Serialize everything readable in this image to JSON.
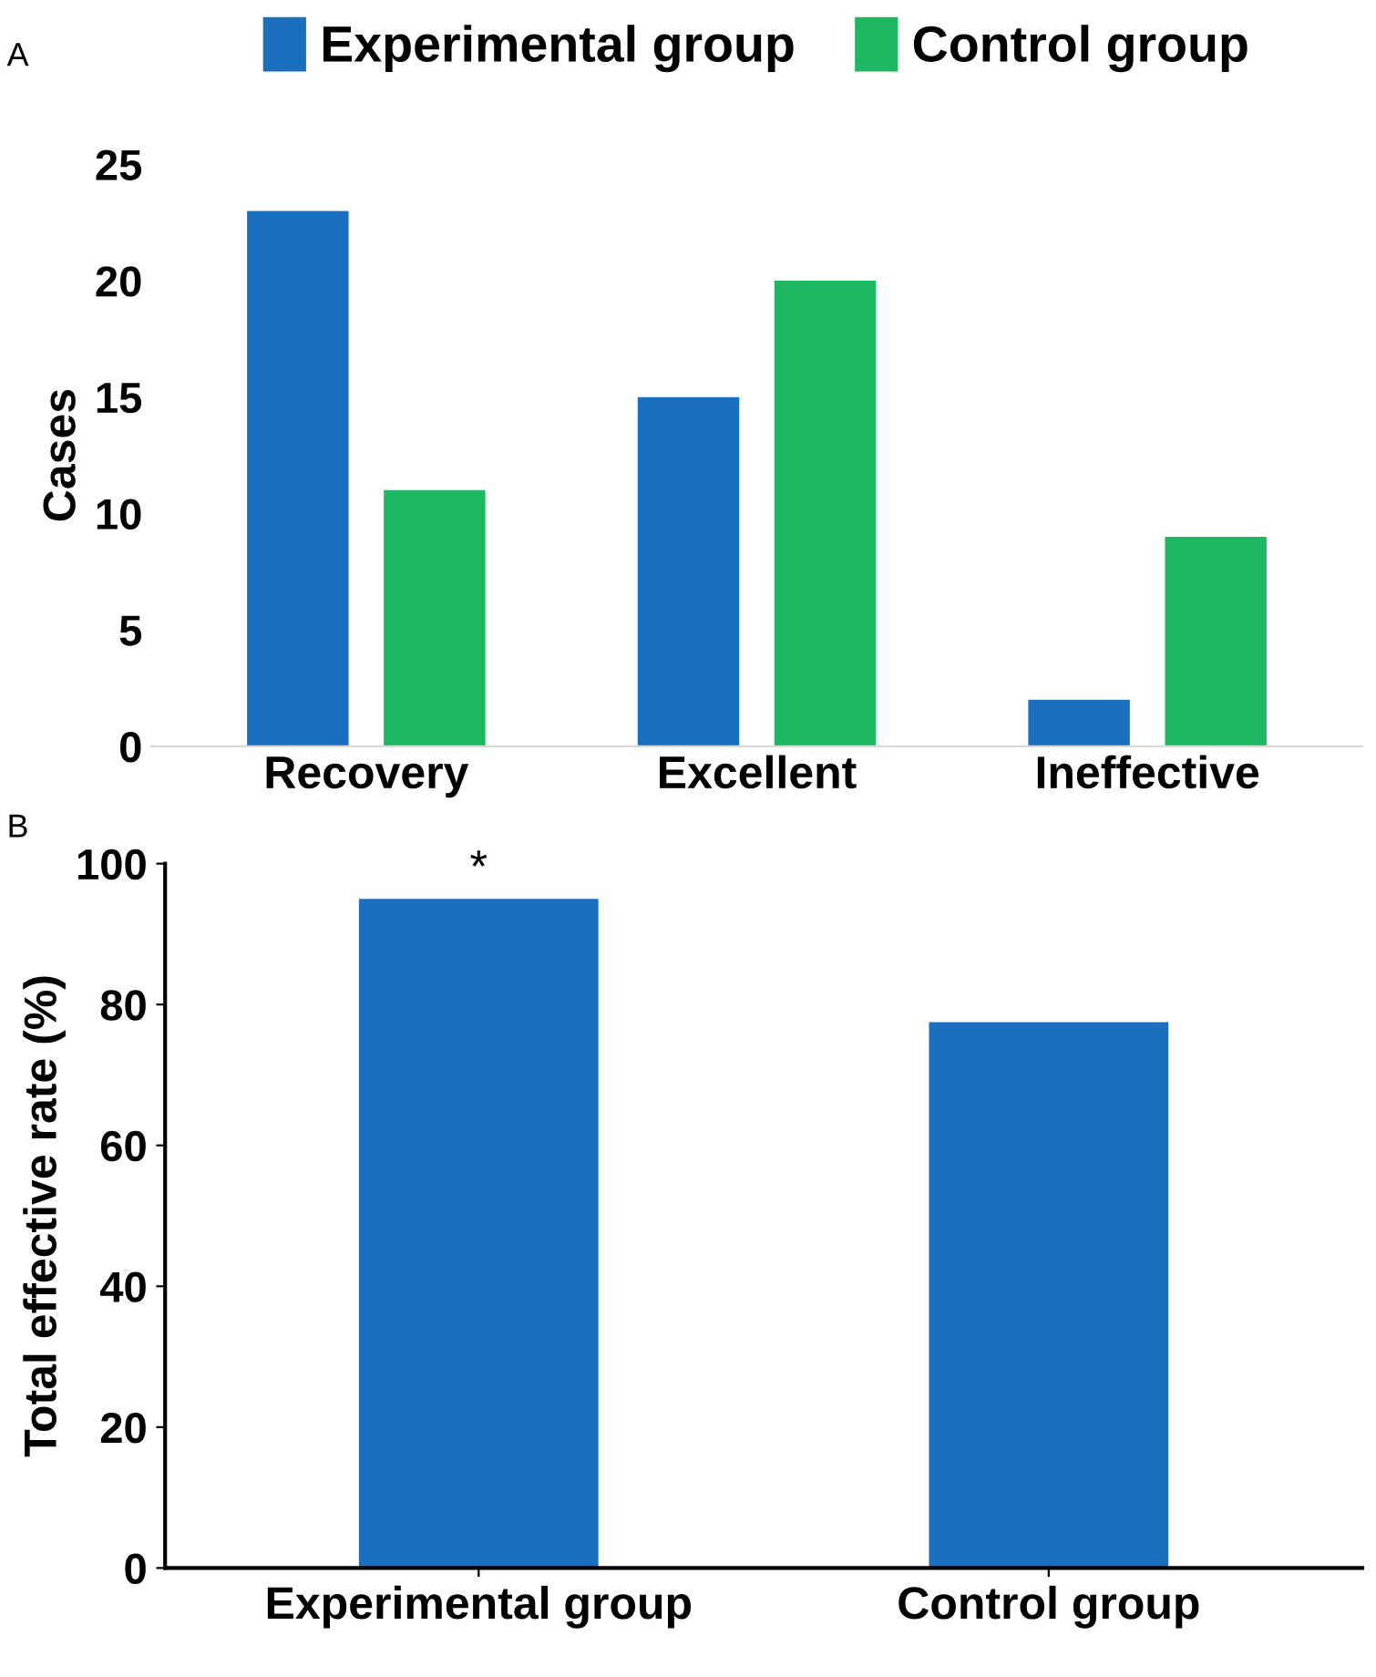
{
  "chart_data": [
    {
      "type": "bar",
      "ylabel": "Cases",
      "categories": [
        "Recovery",
        "Excellent",
        "Ineffective"
      ],
      "series": [
        {
          "name": "Experimental group",
          "color": "#1a6fbf",
          "values": [
            23,
            15,
            2
          ]
        },
        {
          "name": "Control group",
          "color": "#1fb862",
          "values": [
            11,
            20,
            9
          ]
        }
      ],
      "ylim": [
        0,
        25
      ],
      "yticks": [
        0,
        5,
        10,
        15,
        20,
        25
      ],
      "legend": "top",
      "annotations": [
        "A"
      ]
    },
    {
      "type": "bar",
      "ylabel": "Total effective rate (%)",
      "categories": [
        "Experimental group",
        "Control group"
      ],
      "series": [
        {
          "color": "#1a6fbf",
          "values": [
            95,
            77.5
          ]
        }
      ],
      "ylim": [
        0,
        100
      ],
      "yticks": [
        0,
        20,
        40,
        60,
        80,
        100
      ],
      "annotations": [
        "B",
        {
          "text": "*",
          "x": "Experimental group",
          "y": 95
        }
      ]
    }
  ]
}
